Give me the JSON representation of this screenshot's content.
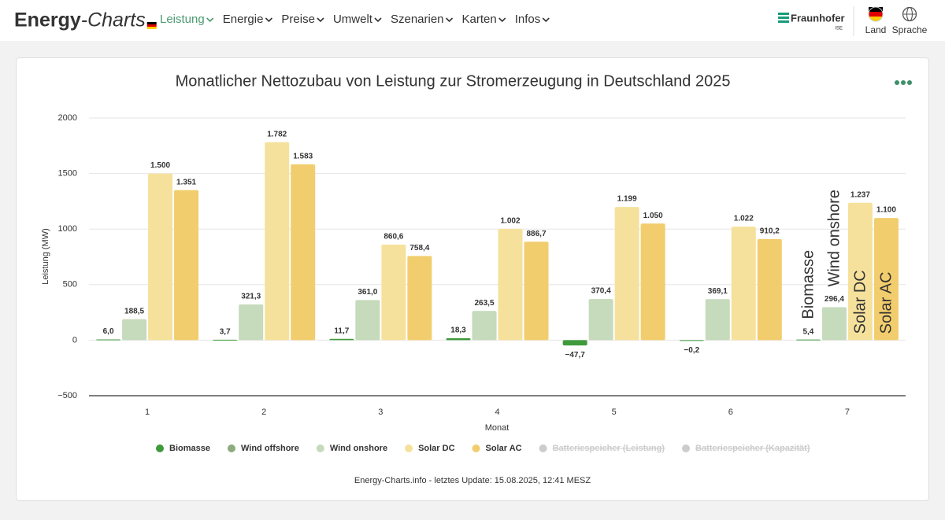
{
  "header": {
    "logo": [
      "Energy",
      "-Charts"
    ],
    "menu": [
      "Leistung",
      "Energie",
      "Preise",
      "Umwelt",
      "Szenarien",
      "Karten",
      "Infos"
    ],
    "active": "Leistung",
    "brand": "Fraunhofer",
    "brand_sub": "ISE",
    "actions": [
      "Land",
      "Sprache"
    ]
  },
  "chart_data": {
    "type": "bar",
    "title": "Monatlicher Nettozubau von Leistung zur Stromerzeugung in Deutschland 2025",
    "y_label": "Leistung (MW)",
    "x_label": "Monat",
    "categories": [
      "1",
      "2",
      "3",
      "4",
      "5",
      "6",
      "7"
    ],
    "series": [
      {
        "name": "Biomasse",
        "color": "#3f9a3c",
        "values": [
          6.0,
          3.7,
          11.7,
          18.3,
          -47.7,
          -0.2,
          5.4
        ],
        "value_labels": [
          "6,0",
          "3,7",
          "11,7",
          "18,3",
          "−47,7",
          "−0,2",
          "5,4"
        ]
      },
      {
        "name": "Wind offshore",
        "color": "#8dab7d",
        "values": [
          null,
          null,
          null,
          null,
          null,
          null,
          null
        ]
      },
      {
        "name": "Wind onshore",
        "color": "#c6dabc",
        "values": [
          188.5,
          321.3,
          361.0,
          263.5,
          370.4,
          369.1,
          296.4
        ],
        "value_labels": [
          "188,5",
          "321,3",
          "361,0",
          "263,5",
          "370,4",
          "369,1",
          "296,4"
        ]
      },
      {
        "name": "Solar DC",
        "color": "#f6e19c",
        "values": [
          1500,
          1782,
          860.6,
          1002,
          1199,
          1022,
          1237
        ],
        "value_labels": [
          "1.500",
          "1.782",
          "860,6",
          "1.002",
          "1.199",
          "1.022",
          "1.237"
        ]
      },
      {
        "name": "Solar AC",
        "color": "#f2cd6d",
        "values": [
          1351,
          1583,
          758.4,
          886.7,
          1050,
          910.2,
          1100
        ],
        "value_labels": [
          "1.351",
          "1.583",
          "758,4",
          "886,7",
          "1.050",
          "910,2",
          "1.100"
        ]
      },
      {
        "name": "Batteriespeicher (Leistung)",
        "color": "#cccccc",
        "hidden": true,
        "values": [
          null,
          null,
          null,
          null,
          null,
          null,
          null
        ]
      },
      {
        "name": "Batteriespeicher (Kapazität)",
        "color": "#cccccc",
        "hidden": true,
        "values": [
          null,
          null,
          null,
          null,
          null,
          null,
          null
        ]
      }
    ],
    "ylim": [
      -500,
      2000
    ],
    "yticks": [
      {
        "value": -500,
        "label": "−500"
      },
      0,
      500,
      1000,
      1500,
      2000
    ],
    "grid": true,
    "legend": "bottom",
    "footer": "Energy-Charts.info - letztes Update: 15.08.2025, 12:41 MESZ"
  }
}
